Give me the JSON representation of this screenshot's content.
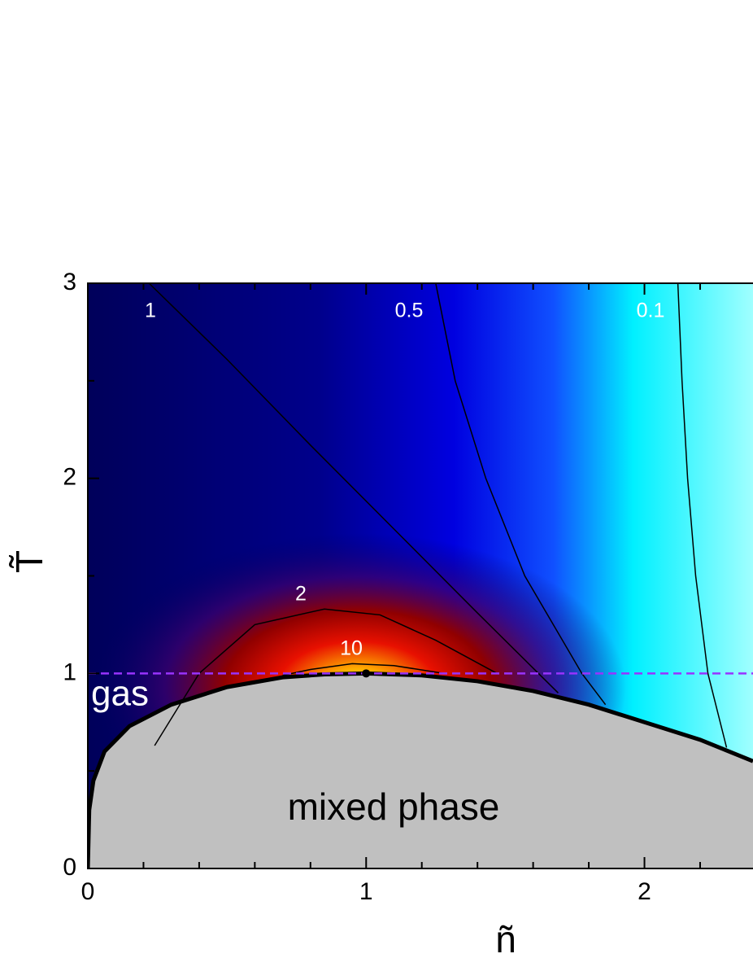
{
  "chart_data": {
    "type": "contour",
    "x_label": "ñ",
    "y_label": "T̃",
    "xlim": [
      0,
      2.39
    ],
    "ylim": [
      0,
      3
    ],
    "xticks": [
      0,
      1,
      2
    ],
    "yticks": [
      0,
      1,
      2,
      3
    ],
    "xminorticks": [
      0.2,
      0.4,
      0.6,
      0.8,
      1.2,
      1.4,
      1.6,
      1.8,
      2.2
    ],
    "yminorticks": [
      0.5,
      1.5,
      2.5
    ],
    "contours": [
      {
        "level": 1,
        "x": [
          0.22,
          0.5,
          0.8,
          1.1,
          1.4,
          1.69
        ],
        "y": [
          3,
          2.61,
          2.17,
          1.74,
          1.31,
          0.9
        ]
      },
      {
        "level": 0.5,
        "x": [
          1.25,
          1.32,
          1.43,
          1.57,
          1.775,
          1.86
        ],
        "y": [
          3,
          2.5,
          2,
          1.5,
          1,
          0.84
        ]
      },
      {
        "level": 0.1,
        "x": [
          2.12,
          2.135,
          2.155,
          2.184,
          2.228,
          2.295
        ],
        "y": [
          3,
          2.5,
          2,
          1.5,
          1,
          0.62
        ]
      },
      {
        "level": 2,
        "x": [
          0.24,
          0.4,
          0.6,
          0.85,
          1.05,
          1.25,
          1.47
        ],
        "y": [
          0.63,
          1.0,
          1.25,
          1.33,
          1.3,
          1.17,
          1.0
        ]
      },
      {
        "level": 10,
        "x": [
          0.7,
          0.8,
          0.95,
          1.1,
          1.28
        ],
        "y": [
          0.99,
          1.02,
          1.05,
          1.04,
          1.0
        ]
      }
    ],
    "boundary": {
      "x": [
        0,
        0.005,
        0.02,
        0.06,
        0.15,
        0.3,
        0.5,
        0.7,
        0.85,
        1,
        1.2,
        1.4,
        1.6,
        1.8,
        2.0,
        2.2,
        2.39
      ],
      "y": [
        0,
        0.3,
        0.45,
        0.6,
        0.73,
        0.84,
        0.93,
        0.98,
        0.995,
        1,
        0.99,
        0.96,
        0.91,
        0.84,
        0.75,
        0.66,
        0.55
      ],
      "color": "#c0c0c0"
    },
    "dashed_line": {
      "y": 1,
      "color": "#9933ff"
    },
    "critical_point": {
      "x": 1,
      "y": 1
    },
    "annotations": [
      "gas",
      "mixed phase"
    ]
  }
}
